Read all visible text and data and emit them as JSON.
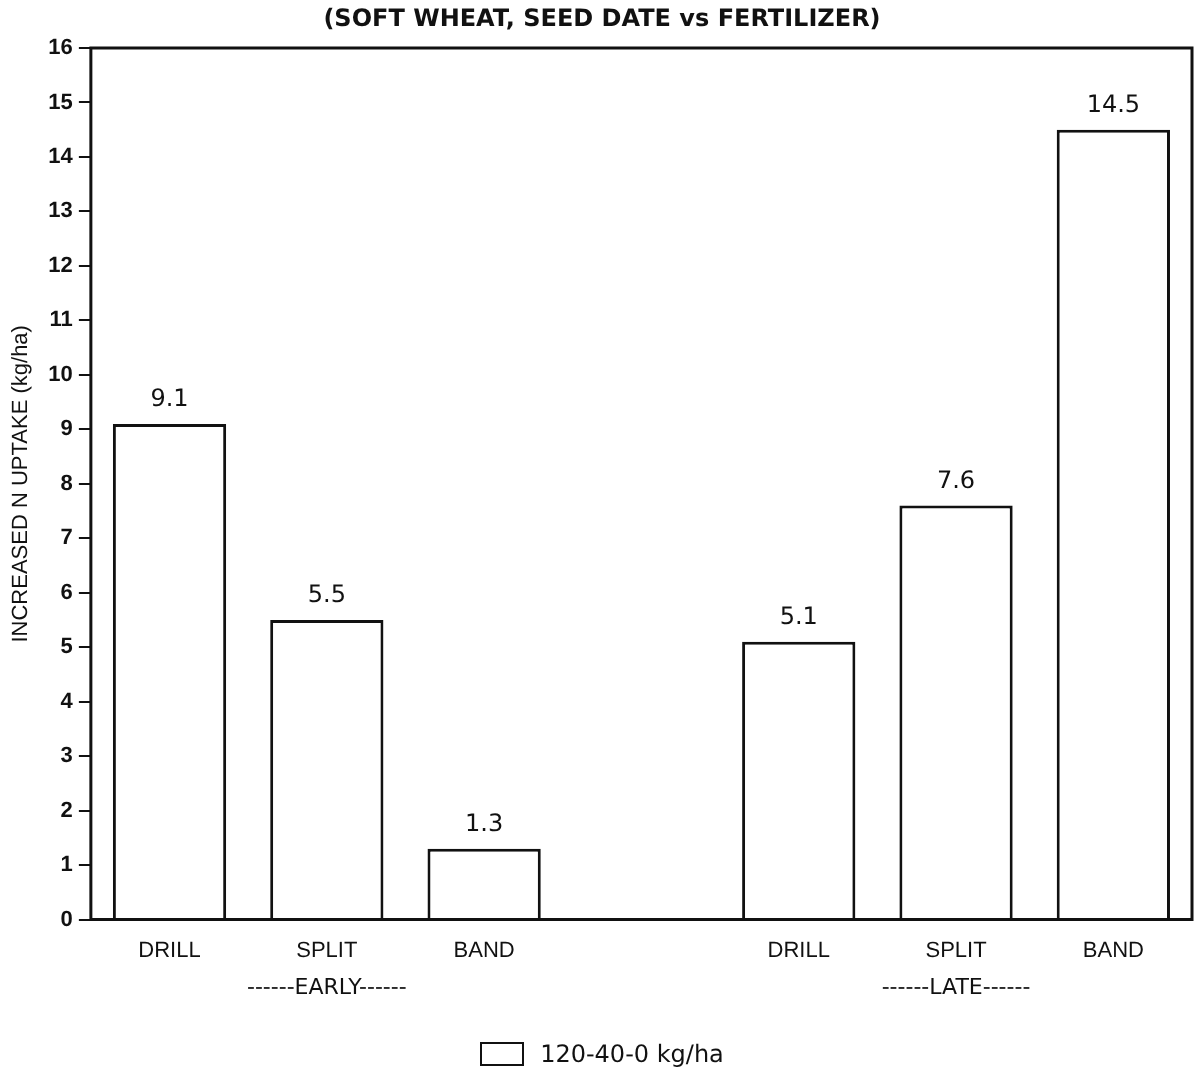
{
  "chart_data": {
    "type": "bar",
    "title": "(SOFT WHEAT, SEED DATE vs FERTILIZER)",
    "ylabel": "INCREASED N UPTAKE (kg/ha)",
    "categories": [
      "DRILL",
      "SPLIT",
      "BAND",
      null,
      "DRILL",
      "SPLIT",
      "BAND"
    ],
    "series": [
      {
        "name": "120-40-0 kg/ha",
        "color": "#ffffff",
        "values": [
          9.1,
          5.5,
          1.3,
          null,
          5.1,
          7.6,
          14.5
        ]
      }
    ],
    "annotations": [
      "------EARLY------",
      "------LATE------"
    ],
    "ylim": [
      0,
      16
    ],
    "yticks": [
      0,
      1,
      2,
      3,
      4,
      5,
      6,
      7,
      8,
      9,
      10,
      11,
      12,
      13,
      14,
      15,
      16
    ],
    "data_labels": true,
    "grid": false,
    "legend": "bottom"
  }
}
